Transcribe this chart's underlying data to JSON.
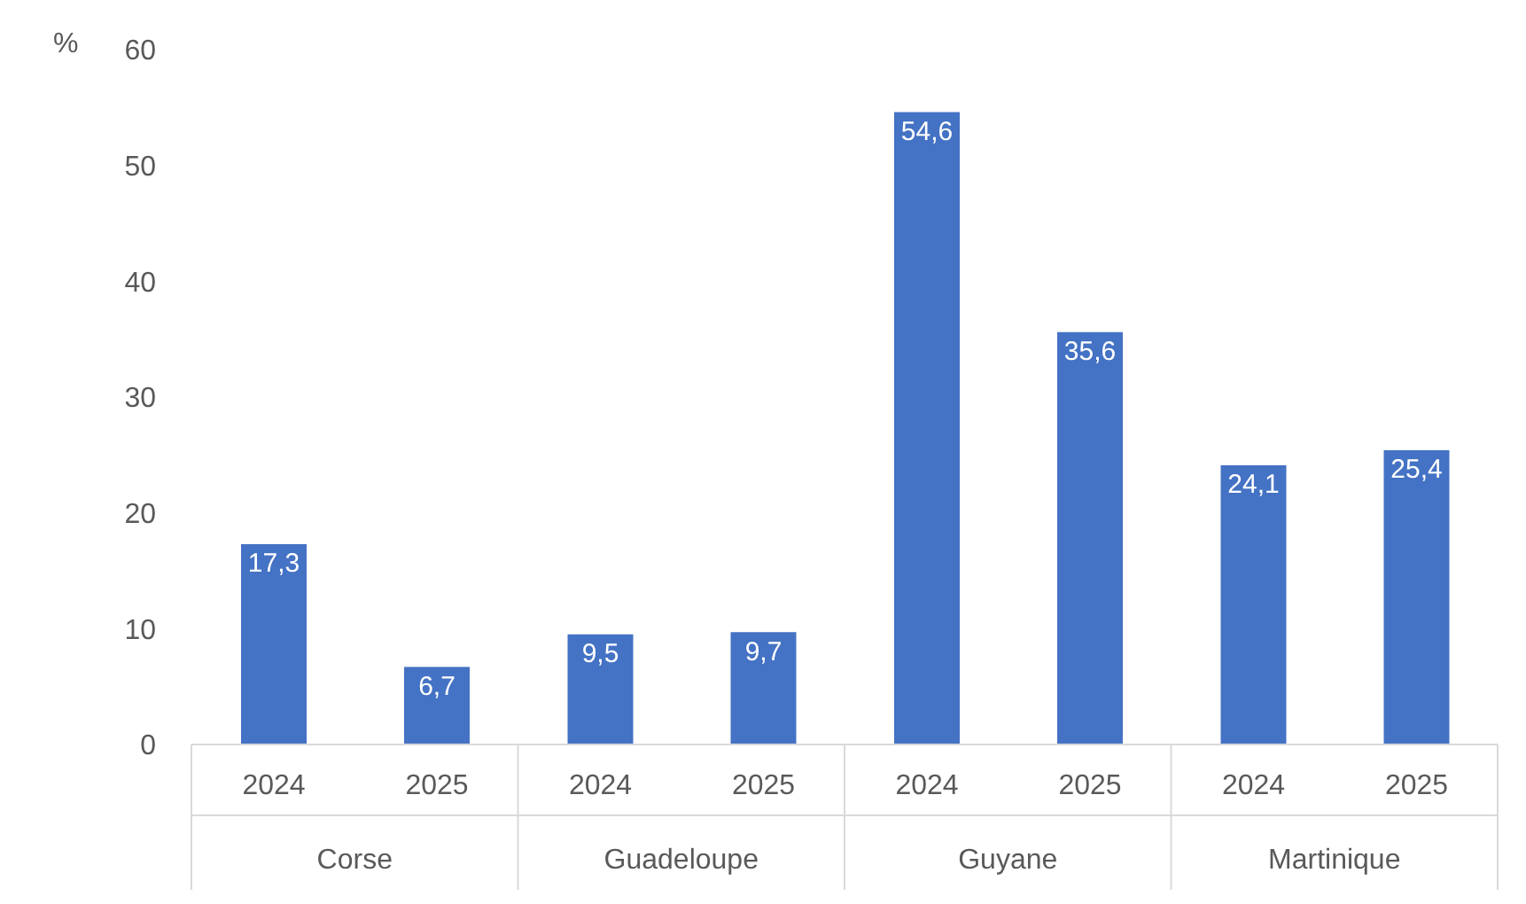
{
  "chart_data": {
    "type": "bar",
    "ylabel": "%",
    "categories": [
      "Corse",
      "Guadeloupe",
      "Guyane",
      "Martinique"
    ],
    "series": [
      {
        "name": "2024",
        "color": "#4472c4",
        "values": [
          17.3,
          9.5,
          54.6,
          24.1
        ],
        "value_labels": [
          "17,3",
          "9,5",
          "54,6",
          "24,1"
        ]
      },
      {
        "name": "2025",
        "color": "#4472c4",
        "values": [
          6.7,
          9.7,
          35.6,
          25.4
        ],
        "value_labels": [
          "6,7",
          "9,7",
          "35,6",
          "25,4"
        ]
      }
    ],
    "ylim": [
      0,
      60
    ],
    "yticks": [
      0,
      10,
      20,
      30,
      40,
      50,
      60
    ],
    "grid": false,
    "legend": false
  }
}
